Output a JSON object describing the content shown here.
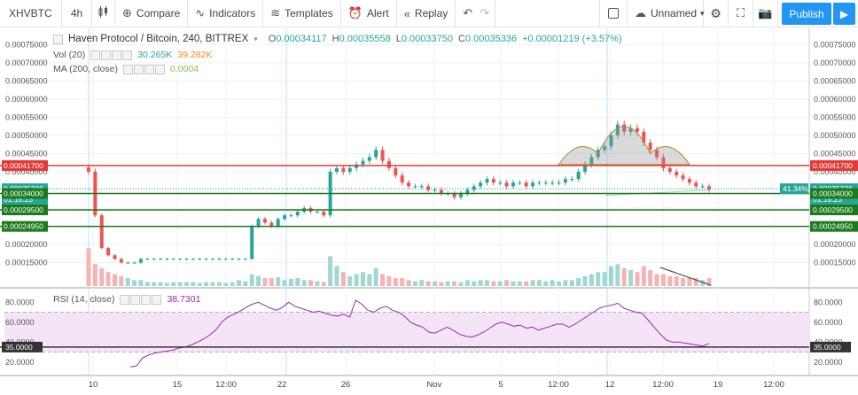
{
  "toolbar": {
    "symbol": "XHVBTC",
    "interval": "4h",
    "compare": "Compare",
    "indicators": "Indicators",
    "templates": "Templates",
    "alert": "Alert",
    "replay": "Replay",
    "layout_name": "Unnamed",
    "publish": "Publish"
  },
  "legend": {
    "title": "Haven Protocol / Bitcoin, 240, BITTREX",
    "o_label": "O",
    "o": "0.00034117",
    "h_label": "H",
    "h": "0.00035558",
    "l_label": "L",
    "l": "0.00033750",
    "c_label": "C",
    "c": "0.00035336",
    "change": "+0.00001219 (+3.57%)",
    "vol_label": "Vol (20)",
    "vol_a": "30.265K",
    "vol_b": "39.282K",
    "ma_label": "MA (200, close)",
    "ma_value": "0.0004",
    "rsi_label": "RSI (14, close)",
    "rsi_value": "38.7301"
  },
  "price_axis": {
    "ticks": [
      "0.00075000",
      "0.00070000",
      "0.00065000",
      "0.00060000",
      "0.00055000",
      "0.00050000",
      "0.00045000",
      "0.00040000",
      "0.00035000",
      "0.00030000",
      "0.00025000",
      "0.00020000",
      "0.00015000"
    ],
    "markers": [
      {
        "value": "0.00041700",
        "color": "#e53935"
      },
      {
        "value": "0.00035336",
        "color": "#26a69a"
      },
      {
        "value": "01:16:23",
        "color": "#26a69a"
      },
      {
        "value": "0.00034000",
        "color": "#1b7a1b"
      },
      {
        "value": "0.00029500",
        "color": "#1b7a1b"
      },
      {
        "value": "0.00024950",
        "color": "#1b7a1b"
      }
    ],
    "percent_badge": "41.34%"
  },
  "rsi_axis": {
    "ticks": [
      "80.0000",
      "60.0000",
      "40.0000",
      "20.0000"
    ],
    "marker": "35.0000"
  },
  "time_axis": {
    "labels": [
      "10",
      "15",
      "12:00",
      "22",
      "26",
      "Nov",
      "5",
      "12:00",
      "12",
      "12:00",
      "19",
      "12:00"
    ]
  },
  "colors": {
    "up": "#26a69a",
    "down": "#ef5350",
    "rsi_line": "#9c27b0",
    "rsi_band": "#f3e5f5",
    "resistance": "#e53935",
    "support": "#1b7a1b",
    "accent": "#2196f3"
  },
  "chart_data": {
    "type": "candlestick",
    "title": "Haven Protocol / Bitcoin, 240, BITTREX",
    "price_ylim": [
      0.0001,
      0.00078
    ],
    "horizontal_levels": {
      "resistance": [
        0.000417
      ],
      "support": [
        0.00034,
        0.000295,
        0.0002495
      ]
    },
    "current_close": 0.00035336,
    "price_path": [
      0.0004,
      0.00028,
      0.00019,
      0.00017,
      0.00016,
      0.00015,
      0.00015,
      0.00015,
      0.00016,
      0.00016,
      0.00016,
      0.00016,
      0.00016,
      0.00016,
      0.00016,
      0.00016,
      0.00016,
      0.00016,
      0.00016,
      0.00016,
      0.00016,
      0.00016,
      0.00016,
      0.00016,
      0.00016,
      0.00025,
      0.00027,
      0.00026,
      0.00025,
      0.00027,
      0.00028,
      0.00028,
      0.00029,
      0.0003,
      0.00029,
      0.00029,
      0.00028,
      0.0004,
      0.00041,
      0.0004,
      0.00041,
      0.00042,
      0.00043,
      0.00044,
      0.00046,
      0.00043,
      0.00041,
      0.00039,
      0.00037,
      0.00036,
      0.00036,
      0.00036,
      0.00035,
      0.00035,
      0.00034,
      0.00034,
      0.00033,
      0.00034,
      0.00035,
      0.00036,
      0.00037,
      0.00038,
      0.00037,
      0.00037,
      0.00036,
      0.00037,
      0.00037,
      0.00036,
      0.00037,
      0.00037,
      0.00037,
      0.00037,
      0.00037,
      0.00038,
      0.00038,
      0.0004,
      0.00042,
      0.00044,
      0.00046,
      0.00047,
      0.0005,
      0.00053,
      0.00051,
      0.00052,
      0.00051,
      0.00048,
      0.00046,
      0.00044,
      0.00041,
      0.0004,
      0.00039,
      0.00038,
      0.00037,
      0.00036,
      0.00036,
      0.00035
    ],
    "volume_rel": [
      0.95,
      0.55,
      0.45,
      0.35,
      0.3,
      0.25,
      0.2,
      0.15,
      0.15,
      0.1,
      0.1,
      0.1,
      0.08,
      0.1,
      0.1,
      0.1,
      0.1,
      0.08,
      0.1,
      0.1,
      0.1,
      0.08,
      0.1,
      0.15,
      0.12,
      0.3,
      0.25,
      0.2,
      0.2,
      0.22,
      0.15,
      0.18,
      0.2,
      0.15,
      0.15,
      0.12,
      0.1,
      0.75,
      0.5,
      0.35,
      0.25,
      0.3,
      0.35,
      0.3,
      0.45,
      0.3,
      0.25,
      0.2,
      0.2,
      0.15,
      0.12,
      0.15,
      0.12,
      0.12,
      0.1,
      0.12,
      0.12,
      0.1,
      0.15,
      0.12,
      0.15,
      0.15,
      0.12,
      0.12,
      0.15,
      0.12,
      0.12,
      0.12,
      0.15,
      0.15,
      0.12,
      0.15,
      0.12,
      0.15,
      0.15,
      0.2,
      0.25,
      0.3,
      0.35,
      0.35,
      0.5,
      0.55,
      0.45,
      0.4,
      0.35,
      0.5,
      0.4,
      0.3,
      0.3,
      0.25,
      0.25,
      0.2,
      0.2,
      0.2,
      0.15,
      0.2
    ],
    "rsi_ylim": [
      10,
      90
    ],
    "rsi_levels": {
      "upper": 70,
      "lower": 30,
      "marker": 35
    },
    "rsi_values": [
      15,
      16,
      24,
      27,
      29,
      30,
      31,
      32,
      34,
      35,
      37,
      40,
      43,
      47,
      52,
      60,
      65,
      68,
      71,
      75,
      78,
      80,
      77,
      74,
      72,
      75,
      80,
      76,
      74,
      72,
      70,
      71,
      69,
      67,
      66,
      68,
      65,
      82,
      78,
      72,
      70,
      74,
      76,
      72,
      70,
      66,
      60,
      57,
      55,
      50,
      49,
      52,
      55,
      52,
      48,
      46,
      45,
      47,
      50,
      54,
      58,
      60,
      58,
      56,
      57,
      54,
      55,
      52,
      54,
      56,
      58,
      58,
      55,
      58,
      62,
      66,
      70,
      74,
      76,
      77,
      79,
      74,
      72,
      70,
      69,
      62,
      55,
      48,
      42,
      40,
      40,
      39,
      38,
      37,
      36,
      38.7
    ]
  }
}
